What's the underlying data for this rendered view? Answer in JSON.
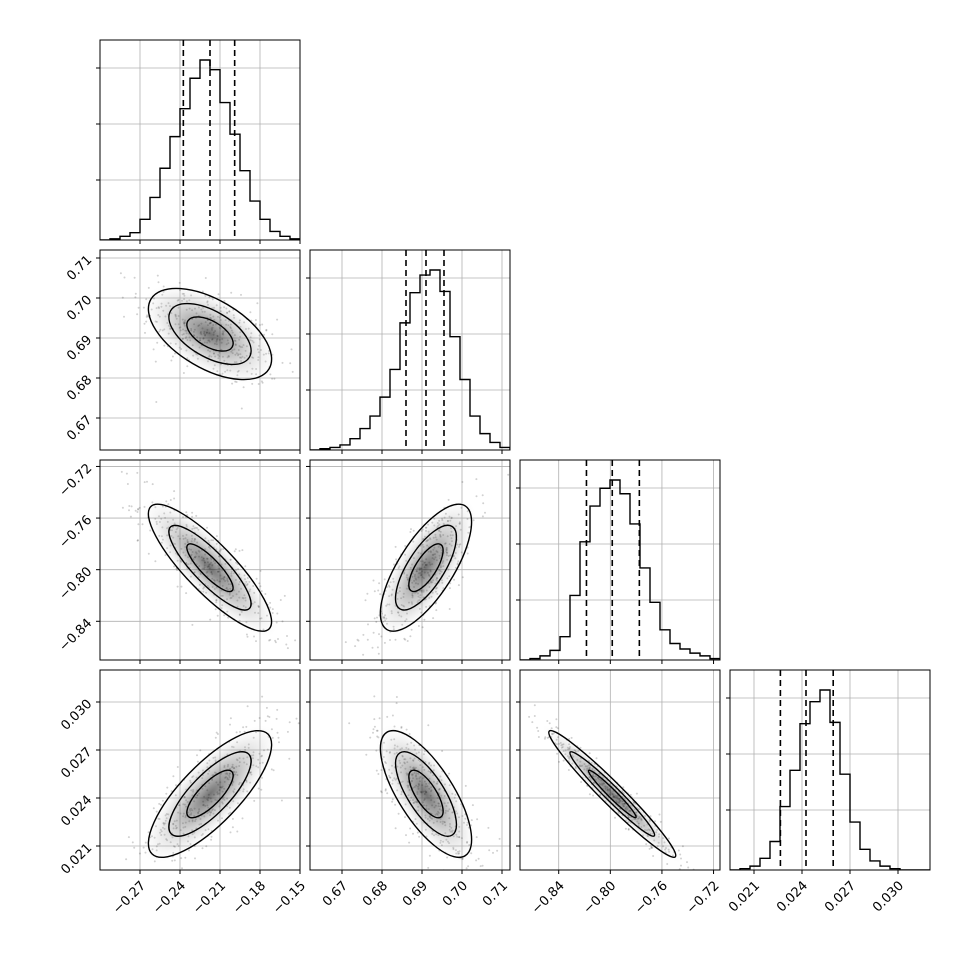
{
  "chart_data": {
    "type": "corner",
    "title": "",
    "parameters": [
      {
        "range": [
          -0.3,
          -0.15
        ],
        "ticks": [
          -0.27,
          -0.24,
          -0.21,
          -0.18,
          -0.15
        ],
        "tick_labels": [
          "−0.27",
          "−0.24",
          "−0.21",
          "−0.18",
          "−0.15"
        ],
        "quantiles": [
          -0.2375,
          -0.2175,
          -0.199
        ],
        "hist_bins": [
          -0.3,
          -0.2925,
          -0.285,
          -0.2775,
          -0.27,
          -0.2625,
          -0.255,
          -0.2475,
          -0.24,
          -0.2325,
          -0.225,
          -0.2175,
          -0.21,
          -0.2025,
          -0.195,
          -0.1875,
          -0.18,
          -0.1725,
          -0.165,
          -0.1575,
          -0.15
        ],
        "hist_counts": [
          0,
          1,
          3,
          6,
          17,
          35,
          59,
          85,
          108,
          133,
          148,
          140,
          113,
          87,
          57,
          32,
          17,
          7,
          3,
          1
        ]
      },
      {
        "range": [
          0.662,
          0.712
        ],
        "ticks": [
          0.67,
          0.68,
          0.69,
          0.7,
          0.71
        ],
        "tick_labels": [
          "0.67",
          "0.68",
          "0.69",
          "0.70",
          "0.71"
        ],
        "quantiles": [
          0.686,
          0.691,
          0.6955
        ],
        "hist_bins": [
          0.662,
          0.6645,
          0.667,
          0.6695,
          0.672,
          0.6745,
          0.677,
          0.6795,
          0.682,
          0.6845,
          0.687,
          0.6895,
          0.692,
          0.6945,
          0.697,
          0.6995,
          0.702,
          0.7045,
          0.707,
          0.7095,
          0.712
        ],
        "hist_counts": [
          0,
          1,
          2,
          4,
          9,
          17,
          27,
          42,
          64,
          101,
          125,
          139,
          143,
          126,
          90,
          56,
          27,
          13,
          6,
          2
        ]
      },
      {
        "range": [
          -0.87,
          -0.715
        ],
        "ticks": [
          -0.84,
          -0.8,
          -0.76,
          -0.72
        ],
        "tick_labels": [
          "−0.84",
          "−0.80",
          "−0.76",
          "−0.72"
        ],
        "quantiles": [
          -0.8185,
          -0.7985,
          -0.7775
        ],
        "hist_bins": [
          -0.87,
          -0.86225,
          -0.8545,
          -0.84675,
          -0.839,
          -0.83125,
          -0.8235,
          -0.81575,
          -0.808,
          -0.80025,
          -0.7925,
          -0.78475,
          -0.777,
          -0.76925,
          -0.7615,
          -0.75375,
          -0.746,
          -0.73825,
          -0.7305,
          -0.72275,
          -0.715
        ],
        "hist_counts": [
          0,
          1,
          3,
          7,
          17,
          47,
          86,
          112,
          125,
          131,
          121,
          99,
          67,
          42,
          22,
          12,
          8,
          5,
          3,
          1
        ]
      },
      {
        "range": [
          0.0195,
          0.032
        ],
        "ticks": [
          0.021,
          0.024,
          0.027,
          0.03
        ],
        "tick_labels": [
          "0.021",
          "0.024",
          "0.027",
          "0.030"
        ],
        "quantiles": [
          0.02265,
          0.02425,
          0.02595
        ],
        "hist_bins": [
          0.0195,
          0.020125,
          0.02075,
          0.021375,
          0.022,
          0.022625,
          0.02325,
          0.023875,
          0.0245,
          0.025125,
          0.02575,
          0.026375,
          0.027,
          0.027625,
          0.02825,
          0.028875,
          0.0295,
          0.030125,
          0.03075,
          0.031375,
          0.032
        ],
        "hist_counts": [
          0,
          1,
          3,
          9,
          22,
          49,
          77,
          113,
          130,
          139,
          114,
          74,
          37,
          16,
          7,
          3,
          1,
          0,
          0,
          0
        ]
      }
    ],
    "grid": true
  }
}
